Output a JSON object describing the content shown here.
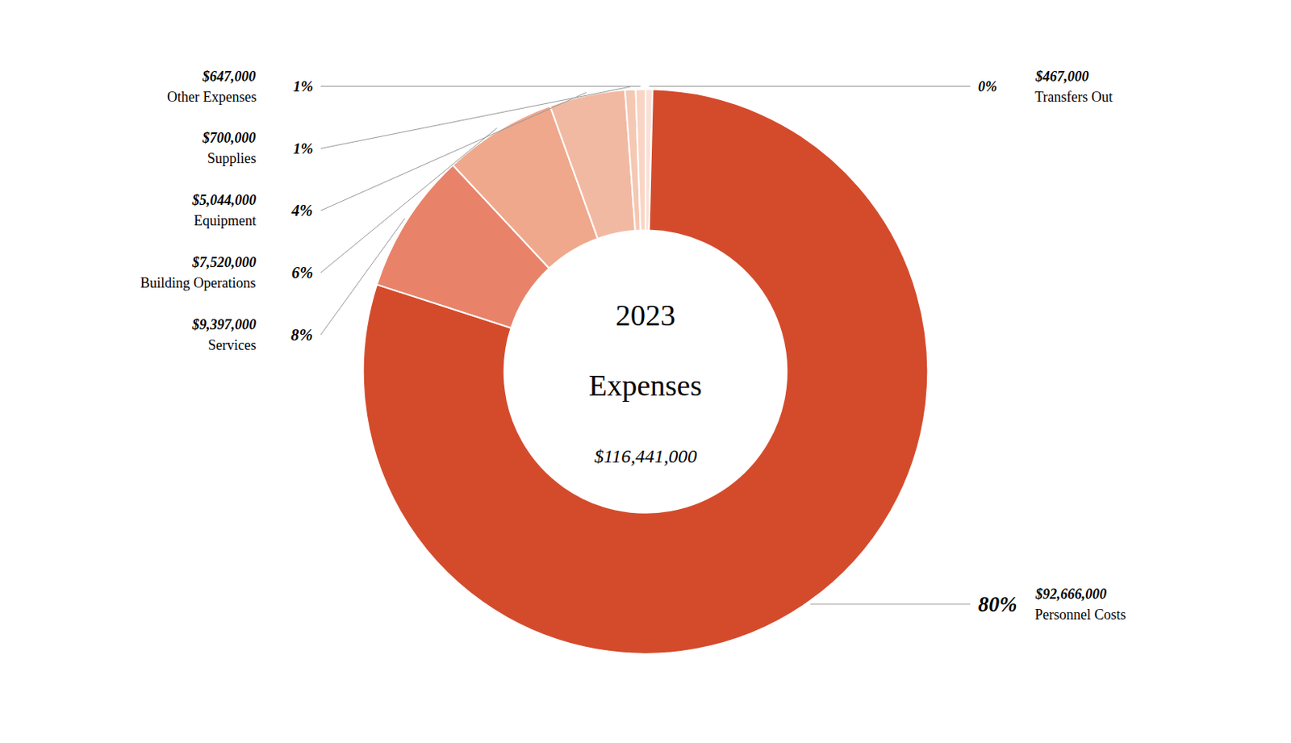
{
  "chart_data": {
    "type": "pie",
    "title": "2023",
    "subtitle": "Expenses",
    "annotations": [
      "$116,441,000"
    ],
    "categories": [
      "Transfers Out",
      "Personnel Costs",
      "Services",
      "Building Operations",
      "Equipment",
      "Supplies",
      "Other Expenses"
    ],
    "values": [
      467000,
      92666000,
      9397000,
      7520000,
      5044000,
      700000,
      647000
    ],
    "value_labels": [
      "$467,000",
      "$92,666,000",
      "$9,397,000",
      "$7,520,000",
      "$5,044,000",
      "$700,000",
      "$647,000"
    ],
    "percents": [
      0,
      80,
      8,
      6,
      4,
      1,
      1
    ],
    "percent_labels": [
      "0%",
      "80%",
      "8%",
      "6%",
      "4%",
      "1%",
      "1%"
    ],
    "colors": [
      "#F9E0D8",
      "#D44B2C",
      "#E8836A",
      "#EFA88C",
      "#F2B9A2",
      "#F5C8B4",
      "#F8D5C4"
    ],
    "data_labels": true
  }
}
